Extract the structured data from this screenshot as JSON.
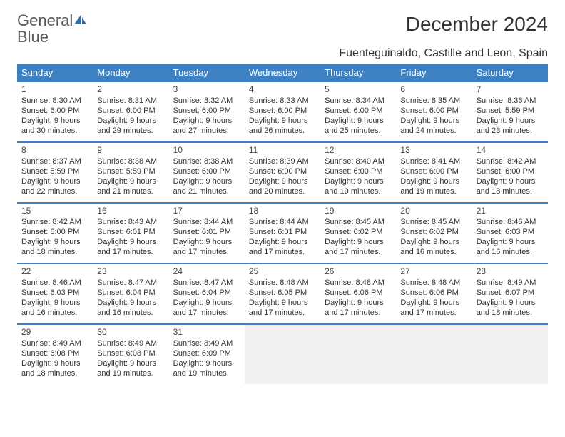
{
  "brand": {
    "part1": "General",
    "part2": "Blue"
  },
  "title": "December 2024",
  "subtitle": "Fuenteguinaldo, Castille and Leon, Spain",
  "colors": {
    "header_bg": "#3d81c2",
    "header_text": "#ffffff",
    "row_border": "#3d81c2",
    "empty_bg": "#f0f0f0",
    "text": "#333333",
    "logo_gray": "#5a5a5a",
    "logo_blue": "#3d81c2"
  },
  "day_names": [
    "Sunday",
    "Monday",
    "Tuesday",
    "Wednesday",
    "Thursday",
    "Friday",
    "Saturday"
  ],
  "weeks": [
    [
      {
        "n": "1",
        "sr": "8:30 AM",
        "ss": "6:00 PM",
        "dl1": "Daylight: 9 hours",
        "dl2": "and 30 minutes."
      },
      {
        "n": "2",
        "sr": "8:31 AM",
        "ss": "6:00 PM",
        "dl1": "Daylight: 9 hours",
        "dl2": "and 29 minutes."
      },
      {
        "n": "3",
        "sr": "8:32 AM",
        "ss": "6:00 PM",
        "dl1": "Daylight: 9 hours",
        "dl2": "and 27 minutes."
      },
      {
        "n": "4",
        "sr": "8:33 AM",
        "ss": "6:00 PM",
        "dl1": "Daylight: 9 hours",
        "dl2": "and 26 minutes."
      },
      {
        "n": "5",
        "sr": "8:34 AM",
        "ss": "6:00 PM",
        "dl1": "Daylight: 9 hours",
        "dl2": "and 25 minutes."
      },
      {
        "n": "6",
        "sr": "8:35 AM",
        "ss": "6:00 PM",
        "dl1": "Daylight: 9 hours",
        "dl2": "and 24 minutes."
      },
      {
        "n": "7",
        "sr": "8:36 AM",
        "ss": "5:59 PM",
        "dl1": "Daylight: 9 hours",
        "dl2": "and 23 minutes."
      }
    ],
    [
      {
        "n": "8",
        "sr": "8:37 AM",
        "ss": "5:59 PM",
        "dl1": "Daylight: 9 hours",
        "dl2": "and 22 minutes."
      },
      {
        "n": "9",
        "sr": "8:38 AM",
        "ss": "5:59 PM",
        "dl1": "Daylight: 9 hours",
        "dl2": "and 21 minutes."
      },
      {
        "n": "10",
        "sr": "8:38 AM",
        "ss": "6:00 PM",
        "dl1": "Daylight: 9 hours",
        "dl2": "and 21 minutes."
      },
      {
        "n": "11",
        "sr": "8:39 AM",
        "ss": "6:00 PM",
        "dl1": "Daylight: 9 hours",
        "dl2": "and 20 minutes."
      },
      {
        "n": "12",
        "sr": "8:40 AM",
        "ss": "6:00 PM",
        "dl1": "Daylight: 9 hours",
        "dl2": "and 19 minutes."
      },
      {
        "n": "13",
        "sr": "8:41 AM",
        "ss": "6:00 PM",
        "dl1": "Daylight: 9 hours",
        "dl2": "and 19 minutes."
      },
      {
        "n": "14",
        "sr": "8:42 AM",
        "ss": "6:00 PM",
        "dl1": "Daylight: 9 hours",
        "dl2": "and 18 minutes."
      }
    ],
    [
      {
        "n": "15",
        "sr": "8:42 AM",
        "ss": "6:00 PM",
        "dl1": "Daylight: 9 hours",
        "dl2": "and 18 minutes."
      },
      {
        "n": "16",
        "sr": "8:43 AM",
        "ss": "6:01 PM",
        "dl1": "Daylight: 9 hours",
        "dl2": "and 17 minutes."
      },
      {
        "n": "17",
        "sr": "8:44 AM",
        "ss": "6:01 PM",
        "dl1": "Daylight: 9 hours",
        "dl2": "and 17 minutes."
      },
      {
        "n": "18",
        "sr": "8:44 AM",
        "ss": "6:01 PM",
        "dl1": "Daylight: 9 hours",
        "dl2": "and 17 minutes."
      },
      {
        "n": "19",
        "sr": "8:45 AM",
        "ss": "6:02 PM",
        "dl1": "Daylight: 9 hours",
        "dl2": "and 17 minutes."
      },
      {
        "n": "20",
        "sr": "8:45 AM",
        "ss": "6:02 PM",
        "dl1": "Daylight: 9 hours",
        "dl2": "and 16 minutes."
      },
      {
        "n": "21",
        "sr": "8:46 AM",
        "ss": "6:03 PM",
        "dl1": "Daylight: 9 hours",
        "dl2": "and 16 minutes."
      }
    ],
    [
      {
        "n": "22",
        "sr": "8:46 AM",
        "ss": "6:03 PM",
        "dl1": "Daylight: 9 hours",
        "dl2": "and 16 minutes."
      },
      {
        "n": "23",
        "sr": "8:47 AM",
        "ss": "6:04 PM",
        "dl1": "Daylight: 9 hours",
        "dl2": "and 16 minutes."
      },
      {
        "n": "24",
        "sr": "8:47 AM",
        "ss": "6:04 PM",
        "dl1": "Daylight: 9 hours",
        "dl2": "and 17 minutes."
      },
      {
        "n": "25",
        "sr": "8:48 AM",
        "ss": "6:05 PM",
        "dl1": "Daylight: 9 hours",
        "dl2": "and 17 minutes."
      },
      {
        "n": "26",
        "sr": "8:48 AM",
        "ss": "6:06 PM",
        "dl1": "Daylight: 9 hours",
        "dl2": "and 17 minutes."
      },
      {
        "n": "27",
        "sr": "8:48 AM",
        "ss": "6:06 PM",
        "dl1": "Daylight: 9 hours",
        "dl2": "and 17 minutes."
      },
      {
        "n": "28",
        "sr": "8:49 AM",
        "ss": "6:07 PM",
        "dl1": "Daylight: 9 hours",
        "dl2": "and 18 minutes."
      }
    ],
    [
      {
        "n": "29",
        "sr": "8:49 AM",
        "ss": "6:08 PM",
        "dl1": "Daylight: 9 hours",
        "dl2": "and 18 minutes."
      },
      {
        "n": "30",
        "sr": "8:49 AM",
        "ss": "6:08 PM",
        "dl1": "Daylight: 9 hours",
        "dl2": "and 19 minutes."
      },
      {
        "n": "31",
        "sr": "8:49 AM",
        "ss": "6:09 PM",
        "dl1": "Daylight: 9 hours",
        "dl2": "and 19 minutes."
      },
      null,
      null,
      null,
      null
    ]
  ],
  "labels": {
    "sunrise": "Sunrise: ",
    "sunset": "Sunset: "
  }
}
